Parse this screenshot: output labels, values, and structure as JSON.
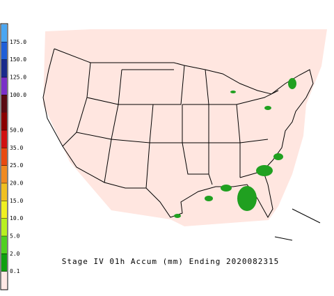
{
  "legend": {
    "colors": [
      "#4aa6f2",
      "#1f5fd8",
      "#1a2a8c",
      "#7a2fc8",
      "#5a0a12",
      "#8a0000",
      "#d01010",
      "#e84a10",
      "#f08a20",
      "#f0c020",
      "#f0f020",
      "#b8f020",
      "#50d020",
      "#10a010",
      "#ffe8e4"
    ],
    "ticks": [
      {
        "value": 175,
        "label": "175.0"
      },
      {
        "value": 150,
        "label": "150.0"
      },
      {
        "value": 125,
        "label": "125.0"
      },
      {
        "value": 100,
        "label": "100.0"
      },
      {
        "value": 50,
        "label": "50.0"
      },
      {
        "value": 35,
        "label": "35.0"
      },
      {
        "value": 25,
        "label": "25.0"
      },
      {
        "value": 20,
        "label": "20.0"
      },
      {
        "value": 15,
        "label": "15.0"
      },
      {
        "value": 10,
        "label": "10.0"
      },
      {
        "value": 5,
        "label": "5.0"
      },
      {
        "value": 2,
        "label": "2.0"
      },
      {
        "value": 0.1,
        "label": "0.1"
      }
    ]
  },
  "caption": "Stage IV 01h Accum (mm) Ending 2020082315"
}
